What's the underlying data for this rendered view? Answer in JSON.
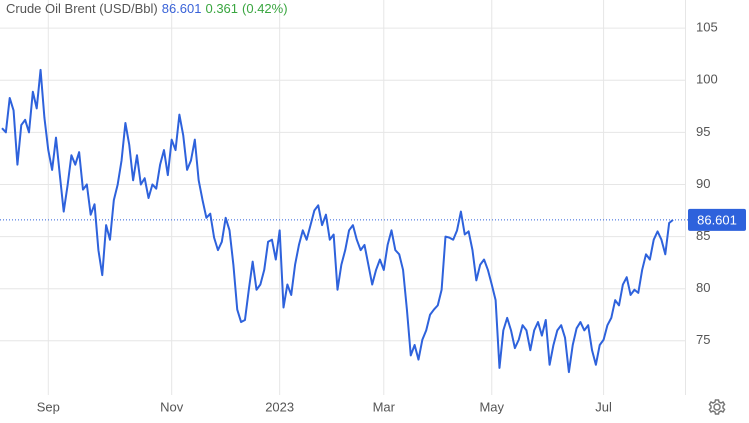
{
  "chart_data": {
    "type": "line",
    "title": "Crude Oil Brent (USD/Bbl)",
    "price": 86.601,
    "change": 0.361,
    "change_pct": "(0.42%)",
    "color": "#2e62dc",
    "grid": true,
    "ylim": [
      69.8,
      107.7
    ],
    "yticks": [
      75,
      80,
      85,
      90,
      95,
      100,
      105
    ],
    "categories": [
      null,
      null,
      null,
      null,
      null,
      null,
      null,
      null,
      null,
      null,
      null,
      null,
      "Sep",
      null,
      null,
      null,
      null,
      null,
      null,
      null,
      null,
      null,
      null,
      null,
      null,
      null,
      null,
      null,
      null,
      null,
      null,
      null,
      null,
      null,
      null,
      null,
      null,
      null,
      null,
      null,
      null,
      null,
      null,
      null,
      "Nov",
      null,
      null,
      null,
      null,
      null,
      null,
      null,
      null,
      null,
      null,
      null,
      null,
      null,
      null,
      null,
      null,
      null,
      null,
      null,
      null,
      null,
      null,
      null,
      null,
      null,
      null,
      null,
      "2023",
      null,
      null,
      null,
      null,
      null,
      null,
      null,
      null,
      null,
      null,
      null,
      null,
      null,
      null,
      null,
      null,
      null,
      null,
      null,
      null,
      null,
      null,
      null,
      null,
      null,
      null,
      "Mar",
      null,
      null,
      null,
      null,
      null,
      null,
      null,
      null,
      null,
      null,
      null,
      null,
      null,
      null,
      null,
      null,
      null,
      null,
      null,
      null,
      null,
      null,
      null,
      null,
      null,
      null,
      null,
      "May",
      null,
      null,
      null,
      null,
      null,
      null,
      null,
      null,
      null,
      null,
      null,
      null,
      null,
      null,
      null,
      null,
      null,
      null,
      null,
      null,
      null,
      null,
      null,
      null,
      null,
      null,
      null,
      null,
      "Jul",
      null,
      null,
      null,
      null,
      null,
      null,
      null,
      null,
      null,
      null,
      null,
      null,
      null,
      null,
      null,
      null,
      null,
      null
    ],
    "values": [
      95.4,
      95.0,
      98.3,
      97.1,
      91.9,
      95.7,
      96.2,
      95.0,
      98.9,
      97.3,
      101.0,
      96.4,
      93.3,
      91.4,
      94.5,
      90.9,
      87.4,
      89.9,
      92.8,
      91.9,
      93.1,
      89.5,
      90.0,
      87.1,
      88.1,
      83.7,
      81.3,
      86.1,
      84.7,
      88.5,
      90.0,
      92.3,
      95.9,
      93.8,
      90.4,
      92.8,
      90.0,
      90.6,
      88.7,
      90.0,
      89.6,
      91.9,
      93.3,
      90.9,
      94.3,
      93.3,
      96.7,
      94.7,
      91.4,
      92.3,
      94.3,
      90.4,
      88.5,
      86.8,
      87.2,
      84.9,
      83.7,
      84.5,
      86.8,
      85.6,
      82.3,
      78.0,
      76.8,
      77.0,
      79.9,
      82.6,
      79.9,
      80.4,
      81.8,
      84.5,
      84.7,
      82.8,
      85.6,
      78.2,
      80.4,
      79.4,
      82.3,
      84.2,
      85.6,
      84.7,
      86.1,
      87.5,
      88.0,
      86.1,
      87.1,
      84.7,
      85.2,
      79.9,
      82.3,
      83.7,
      85.6,
      86.1,
      84.7,
      83.7,
      84.2,
      82.3,
      80.4,
      81.8,
      82.8,
      81.8,
      84.2,
      85.6,
      83.7,
      83.3,
      81.8,
      78.0,
      73.6,
      74.6,
      73.2,
      75.1,
      76.0,
      77.5,
      78.0,
      78.4,
      79.9,
      85.0,
      84.9,
      84.7,
      85.6,
      87.4,
      85.2,
      85.5,
      83.7,
      80.8,
      82.3,
      82.8,
      81.8,
      80.4,
      78.9,
      72.4,
      76.0,
      77.2,
      76.0,
      74.3,
      75.1,
      76.5,
      76.0,
      74.1,
      76.0,
      76.8,
      75.5,
      77.0,
      72.7,
      74.6,
      76.0,
      76.5,
      75.3,
      72.0,
      74.6,
      76.2,
      76.8,
      76.0,
      76.5,
      74.1,
      72.7,
      74.6,
      75.1,
      76.5,
      77.2,
      78.9,
      78.4,
      80.4,
      81.1,
      79.4,
      79.9,
      79.6,
      81.8,
      83.3,
      82.8,
      84.7,
      85.5,
      84.7,
      83.3,
      86.3,
      86.601
    ]
  }
}
